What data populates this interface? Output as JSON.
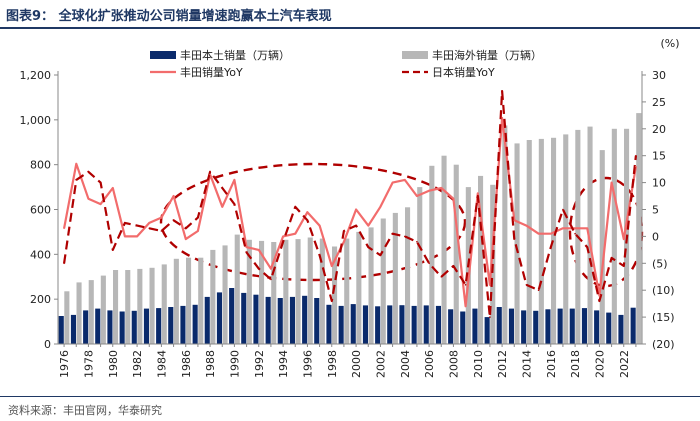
{
  "figure": {
    "title": "图表9：  全球化扩张推动公司销量增速跑赢本土汽车表现",
    "source": "资料来源：丰田官网，华泰研究"
  },
  "colors": {
    "domestic": "#0a2a6b",
    "overseas": "#b7b7b7",
    "toyota_yoy": "#f26c6c",
    "japan_yoy": "#b00000",
    "title": "#1f3864"
  },
  "chart_data": {
    "type": "bar",
    "x": [
      "1976",
      "1977",
      "1978",
      "1979",
      "1980",
      "1981",
      "1982",
      "1983",
      "1984",
      "1985",
      "1986",
      "1987",
      "1988",
      "1989",
      "1990",
      "1991",
      "1992",
      "1993",
      "1994",
      "1995",
      "1996",
      "1997",
      "1998",
      "1999",
      "2000",
      "2001",
      "2002",
      "2003",
      "2004",
      "2005",
      "2006",
      "2007",
      "2008",
      "2009",
      "2010",
      "2011",
      "2012",
      "2013",
      "2014",
      "2015",
      "2016",
      "2017",
      "2018",
      "2019",
      "2020",
      "2021",
      "2022",
      "2023"
    ],
    "x_tick_labels": [
      "1976",
      "1978",
      "1980",
      "1982",
      "1984",
      "1986",
      "1988",
      "1990",
      "1992",
      "1994",
      "1996",
      "1998",
      "2000",
      "2002",
      "2004",
      "2006",
      "2008",
      "2010",
      "2012",
      "2014",
      "2016",
      "2018",
      "2020",
      "2022"
    ],
    "series": [
      {
        "name": "丰田本土销量（万辆）",
        "type": "bar",
        "axis": "left",
        "values": [
          125,
          130,
          150,
          158,
          150,
          145,
          148,
          158,
          160,
          165,
          170,
          175,
          210,
          230,
          250,
          228,
          220,
          210,
          205,
          210,
          215,
          205,
          175,
          170,
          178,
          172,
          168,
          172,
          173,
          170,
          172,
          170,
          155,
          145,
          158,
          120,
          165,
          158,
          150,
          148,
          155,
          158,
          158,
          160,
          150,
          140,
          130,
          162
        ]
      },
      {
        "name": "丰田海外销量（万辆）",
        "type": "bar",
        "axis": "left",
        "values": [
          235,
          275,
          285,
          305,
          330,
          330,
          335,
          340,
          355,
          380,
          385,
          385,
          420,
          440,
          488,
          465,
          460,
          455,
          465,
          468,
          475,
          470,
          435,
          470,
          500,
          520,
          560,
          585,
          610,
          700,
          795,
          840,
          800,
          700,
          750,
          710,
          975,
          895,
          910,
          915,
          920,
          935,
          955,
          970,
          865,
          960,
          960,
          1030
        ]
      },
      {
        "name": "丰田销量YoY",
        "type": "line",
        "axis": "right",
        "values": [
          1.5,
          13.5,
          7.0,
          6.0,
          9.0,
          0.0,
          0.0,
          2.5,
          3.5,
          7.5,
          -0.5,
          1.0,
          11.5,
          5.5,
          10.5,
          -2.0,
          -2.5,
          -6.0,
          0.0,
          0.5,
          4.5,
          2.0,
          -5.5,
          -1.0,
          5.0,
          2.0,
          5.5,
          10.0,
          10.5,
          7.5,
          8.5,
          9.0,
          7.0,
          -13.0,
          8.0,
          -9.0,
          22.0,
          3.0,
          2.0,
          0.5,
          0.5,
          1.5,
          1.5,
          1.5,
          -11.0,
          10.0,
          -0.5,
          13.0
        ]
      },
      {
        "name": "日本销量YoY",
        "type": "line",
        "axis": "right",
        "values": [
          -5.0,
          10.5,
          12.0,
          10.0,
          -2.5,
          2.5,
          2.0,
          1.5,
          1.0,
          3.0,
          1.5,
          3.5,
          12.0,
          9.0,
          6.0,
          -3.0,
          -6.0,
          -8.0,
          -1.0,
          5.5,
          3.0,
          -3.5,
          -12.0,
          1.0,
          2.0,
          -2.0,
          -3.5,
          0.5,
          0.0,
          -1.0,
          -5.0,
          -7.5,
          -5.5,
          -9.0,
          7.5,
          -15.0,
          27.0,
          -0.5,
          -9.0,
          -10.0,
          -2.0,
          5.0,
          0.5,
          -2.0,
          -12.0,
          -4.0,
          -5.5,
          15.0
        ]
      }
    ],
    "y_left": {
      "ticks": [
        "0",
        "200",
        "400",
        "600",
        "800",
        "1,000",
        "1,200"
      ],
      "lim": [
        0,
        1200
      ]
    },
    "y_right": {
      "unit": "(%)",
      "ticks": [
        "30",
        "25",
        "20",
        "15",
        "10",
        "5",
        "0",
        "(5)",
        "(10)",
        "(15)",
        "(20)"
      ],
      "lim": [
        -20,
        30
      ]
    },
    "grid": false,
    "legend_position": "top"
  }
}
